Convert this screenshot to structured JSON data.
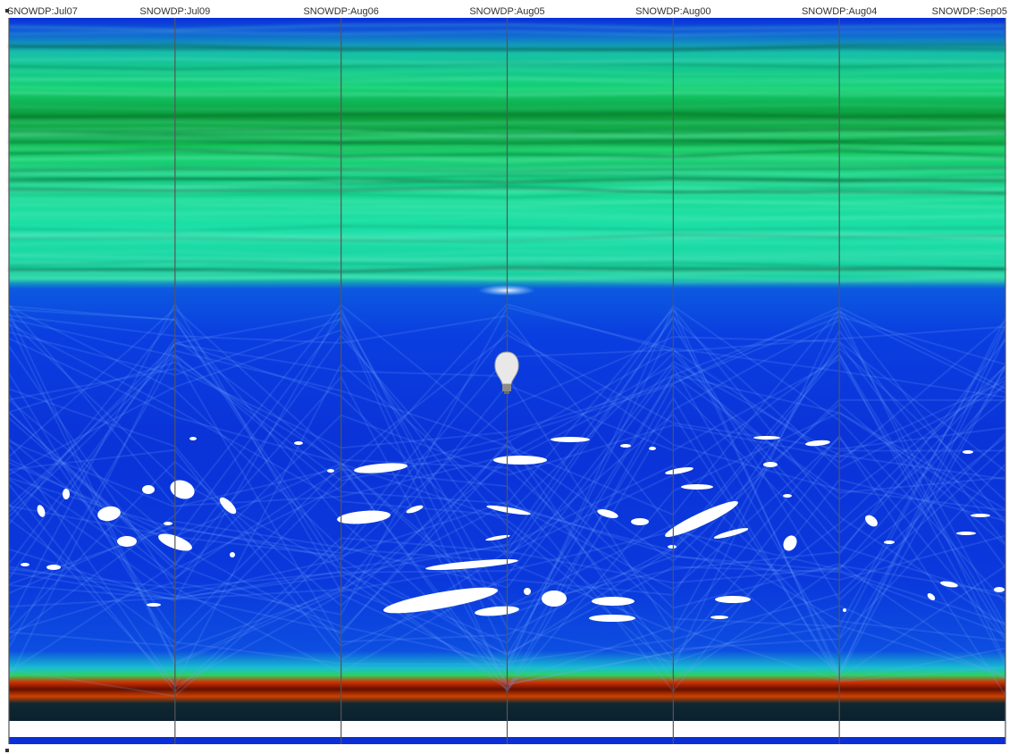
{
  "chart_data": {
    "type": "parallel-coordinates",
    "axes": [
      "SNOWDP:Jul07",
      "SNOWDP:Jul09",
      "SNOWDP:Aug06",
      "SNOWDP:Aug05",
      "SNOWDP:Aug00",
      "SNOWDP:Aug04",
      "SNOWDP:Sep05"
    ],
    "title": "",
    "legend": "none",
    "grid": false,
    "density_bands": [
      {
        "name": "upper-dense-band",
        "range": [
          0.0,
          0.37
        ],
        "dominant_color": "#1fd88a"
      },
      {
        "name": "middle-sparse-band",
        "range": [
          0.37,
          0.93
        ],
        "dominant_color": "#0a3ee0"
      },
      {
        "name": "bottom-saturated-band",
        "range": [
          0.93,
          1.0
        ],
        "dominant_color": "#c03000"
      }
    ],
    "colors": {
      "low_density": "#0a2fd8",
      "mid_density": "#1be0c0",
      "high_density": "#10c040",
      "peak_density": "#d03000",
      "axis_line": "#555555",
      "background": "#ffffff"
    }
  },
  "icons": {
    "marker": "lightbulb-icon"
  }
}
